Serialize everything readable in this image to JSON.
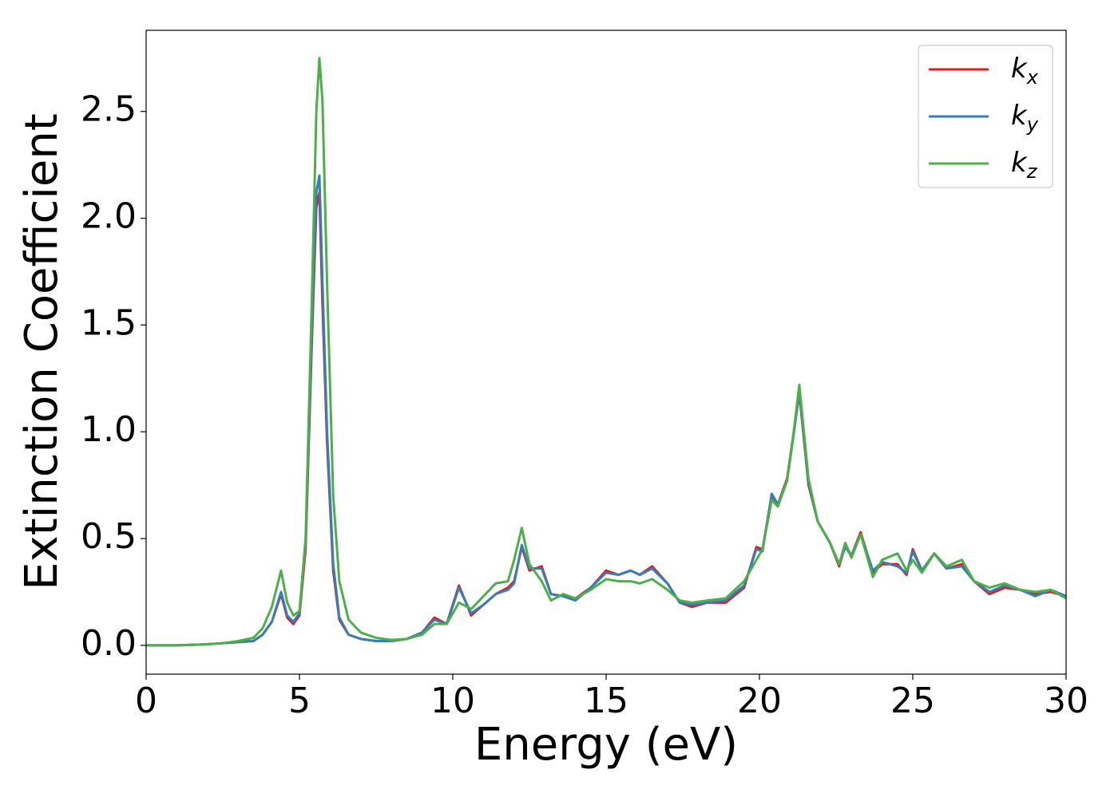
{
  "chart_data": {
    "type": "line",
    "x_label": "Energy (eV)",
    "y_label": "Extinction Coefficient",
    "x": [
      0,
      1,
      2,
      2.5,
      3,
      3.5,
      3.8,
      4.1,
      4.4,
      4.6,
      4.8,
      5.0,
      5.2,
      5.4,
      5.55,
      5.65,
      5.75,
      5.9,
      6.1,
      6.3,
      6.6,
      7.0,
      7.5,
      8,
      8.5,
      9,
      9.4,
      9.8,
      10.2,
      10.6,
      11.0,
      11.4,
      11.8,
      12.0,
      12.25,
      12.5,
      12.9,
      13.2,
      13.6,
      14.0,
      14.5,
      15.0,
      15.4,
      15.8,
      16.1,
      16.5,
      17.0,
      17.4,
      17.8,
      18.3,
      18.9,
      19.5,
      19.9,
      20.1,
      20.4,
      20.6,
      20.9,
      21.1,
      21.3,
      21.6,
      21.9,
      22.3,
      22.6,
      22.8,
      23.0,
      23.3,
      23.7,
      24.0,
      24.5,
      24.8,
      25.0,
      25.3,
      25.7,
      26.1,
      26.6,
      27.0,
      27.5,
      28.0,
      28.5,
      29.0,
      29.5,
      30
    ],
    "series": [
      {
        "name": "kx",
        "color": "#e41a1c",
        "values": [
          0,
          0,
          0.005,
          0.01,
          0.015,
          0.02,
          0.05,
          0.11,
          0.24,
          0.13,
          0.1,
          0.14,
          0.45,
          1.4,
          2.05,
          2.12,
          1.6,
          0.95,
          0.35,
          0.12,
          0.05,
          0.03,
          0.02,
          0.02,
          0.03,
          0.06,
          0.13,
          0.1,
          0.28,
          0.14,
          0.19,
          0.24,
          0.27,
          0.3,
          0.46,
          0.35,
          0.37,
          0.24,
          0.23,
          0.22,
          0.27,
          0.35,
          0.33,
          0.35,
          0.33,
          0.37,
          0.29,
          0.2,
          0.18,
          0.2,
          0.2,
          0.27,
          0.46,
          0.45,
          0.7,
          0.66,
          0.78,
          0.98,
          1.18,
          0.75,
          0.58,
          0.48,
          0.37,
          0.47,
          0.42,
          0.53,
          0.34,
          0.38,
          0.38,
          0.33,
          0.45,
          0.35,
          0.43,
          0.36,
          0.38,
          0.3,
          0.24,
          0.27,
          0.26,
          0.24,
          0.25,
          0.23
        ]
      },
      {
        "name": "ky",
        "color": "#377eb8",
        "values": [
          0,
          0,
          0.005,
          0.01,
          0.015,
          0.02,
          0.05,
          0.11,
          0.25,
          0.14,
          0.11,
          0.15,
          0.48,
          1.45,
          2.12,
          2.2,
          1.7,
          1.0,
          0.38,
          0.13,
          0.05,
          0.03,
          0.02,
          0.02,
          0.03,
          0.06,
          0.12,
          0.1,
          0.27,
          0.15,
          0.19,
          0.24,
          0.26,
          0.29,
          0.47,
          0.36,
          0.36,
          0.24,
          0.23,
          0.21,
          0.27,
          0.34,
          0.33,
          0.35,
          0.33,
          0.36,
          0.29,
          0.2,
          0.19,
          0.2,
          0.21,
          0.28,
          0.45,
          0.44,
          0.71,
          0.66,
          0.77,
          0.97,
          1.19,
          0.76,
          0.58,
          0.48,
          0.38,
          0.46,
          0.42,
          0.52,
          0.35,
          0.39,
          0.37,
          0.34,
          0.44,
          0.35,
          0.43,
          0.36,
          0.37,
          0.3,
          0.25,
          0.28,
          0.26,
          0.23,
          0.26,
          0.23
        ]
      },
      {
        "name": "kz",
        "color": "#4daf4a",
        "values": [
          0,
          0,
          0.005,
          0.01,
          0.02,
          0.035,
          0.08,
          0.18,
          0.35,
          0.2,
          0.14,
          0.16,
          0.5,
          1.6,
          2.5,
          2.75,
          2.55,
          1.7,
          0.7,
          0.3,
          0.12,
          0.06,
          0.035,
          0.025,
          0.03,
          0.05,
          0.1,
          0.1,
          0.2,
          0.17,
          0.23,
          0.29,
          0.3,
          0.4,
          0.55,
          0.38,
          0.3,
          0.21,
          0.24,
          0.22,
          0.26,
          0.31,
          0.3,
          0.3,
          0.29,
          0.31,
          0.26,
          0.21,
          0.2,
          0.21,
          0.22,
          0.3,
          0.4,
          0.45,
          0.68,
          0.65,
          0.77,
          0.98,
          1.22,
          0.78,
          0.58,
          0.48,
          0.38,
          0.48,
          0.41,
          0.52,
          0.32,
          0.4,
          0.43,
          0.35,
          0.4,
          0.34,
          0.43,
          0.37,
          0.4,
          0.3,
          0.27,
          0.29,
          0.26,
          0.25,
          0.26,
          0.22
        ]
      }
    ],
    "xlim": [
      0,
      30
    ],
    "ylim": [
      -0.135,
      2.88
    ],
    "xticks": [
      0,
      5,
      10,
      15,
      20,
      25,
      30
    ],
    "yticks": [
      {
        "value": 0,
        "label": "0.0"
      },
      0.5,
      {
        "value": 1,
        "label": "1.0"
      },
      1.5,
      {
        "value": 2,
        "label": "2.0"
      },
      2.5
    ],
    "grid": false,
    "legend": "upper right"
  }
}
